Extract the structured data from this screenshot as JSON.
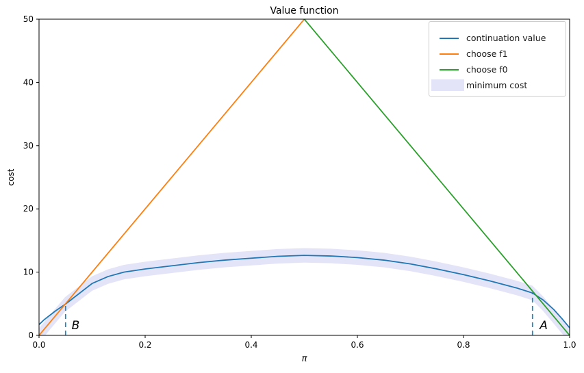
{
  "chart_data": {
    "type": "line",
    "title": "Value function",
    "xlabel": "π",
    "ylabel": "cost",
    "xlim": [
      0.0,
      1.0
    ],
    "ylim": [
      0,
      50
    ],
    "grid": false,
    "xticks": [
      "0.0",
      "0.2",
      "0.4",
      "0.6",
      "0.8",
      "1.0"
    ],
    "yticks": [
      "0",
      "10",
      "20",
      "30",
      "40",
      "50"
    ],
    "frame_color": "#000000",
    "legend": {
      "position": "upper right",
      "border_color": "#cccccc",
      "items": [
        {
          "label": "continuation value",
          "type": "line",
          "color": "#1f77b4"
        },
        {
          "label": "choose f1",
          "type": "line",
          "color": "#ff7f0e"
        },
        {
          "label": "choose f0",
          "type": "line",
          "color": "#2ca02c"
        },
        {
          "label": "minimum cost",
          "type": "patch",
          "color": "#e4e4f8"
        }
      ]
    },
    "series": [
      {
        "name": "continuation value",
        "color": "#1f77b4",
        "points": [
          [
            0,
            1.7
          ],
          [
            0.01,
            2.5
          ],
          [
            0.03,
            3.8
          ],
          [
            0.05,
            4.95
          ],
          [
            0.07,
            6.25
          ],
          [
            0.1,
            8.2
          ],
          [
            0.13,
            9.3
          ],
          [
            0.16,
            10.0
          ],
          [
            0.2,
            10.5
          ],
          [
            0.25,
            11.0
          ],
          [
            0.3,
            11.5
          ],
          [
            0.35,
            11.9
          ],
          [
            0.4,
            12.2
          ],
          [
            0.45,
            12.5
          ],
          [
            0.5,
            12.65
          ],
          [
            0.55,
            12.55
          ],
          [
            0.6,
            12.3
          ],
          [
            0.65,
            11.9
          ],
          [
            0.7,
            11.3
          ],
          [
            0.75,
            10.5
          ],
          [
            0.8,
            9.6
          ],
          [
            0.85,
            8.6
          ],
          [
            0.9,
            7.5
          ],
          [
            0.93,
            6.7
          ],
          [
            0.95,
            5.6
          ],
          [
            0.97,
            4.1
          ],
          [
            0.985,
            2.7
          ],
          [
            1.0,
            1.2
          ]
        ]
      },
      {
        "name": "choose f1",
        "color": "#ff7f0e",
        "points": [
          [
            0,
            0
          ],
          [
            0.5,
            50
          ]
        ]
      },
      {
        "name": "choose f0",
        "color": "#2ca02c",
        "points": [
          [
            0.5,
            50
          ],
          [
            1.0,
            0
          ]
        ]
      }
    ],
    "band": {
      "name": "minimum cost",
      "color": "#e4e4f8",
      "half_width": 1.15,
      "center_points": [
        [
          0,
          0
        ],
        [
          0.01,
          1.0
        ],
        [
          0.025,
          2.5
        ],
        [
          0.04,
          4.0
        ],
        [
          0.049,
          4.9
        ],
        [
          0.07,
          6.25
        ],
        [
          0.1,
          8.2
        ],
        [
          0.13,
          9.3
        ],
        [
          0.16,
          10.0
        ],
        [
          0.2,
          10.5
        ],
        [
          0.25,
          11.0
        ],
        [
          0.3,
          11.5
        ],
        [
          0.35,
          11.9
        ],
        [
          0.4,
          12.2
        ],
        [
          0.45,
          12.5
        ],
        [
          0.5,
          12.65
        ],
        [
          0.55,
          12.55
        ],
        [
          0.6,
          12.3
        ],
        [
          0.65,
          11.9
        ],
        [
          0.7,
          11.3
        ],
        [
          0.75,
          10.5
        ],
        [
          0.8,
          9.6
        ],
        [
          0.85,
          8.6
        ],
        [
          0.9,
          7.5
        ],
        [
          0.93,
          6.7
        ],
        [
          0.95,
          5.0
        ],
        [
          0.97,
          3.0
        ],
        [
          0.985,
          1.5
        ],
        [
          1.0,
          0
        ]
      ]
    },
    "annotations": [
      {
        "label": "B",
        "x": 0.05,
        "line_top": 4.95,
        "text_x": 0.0615,
        "text_baseline": 1.0,
        "line_color": "#2383c4",
        "style": "dashed"
      },
      {
        "label": "A",
        "x": 0.93,
        "line_top": 6.7,
        "text_x": 0.9435,
        "text_baseline": 1.0,
        "line_color": "#2383c4",
        "style": "dashed"
      }
    ]
  }
}
